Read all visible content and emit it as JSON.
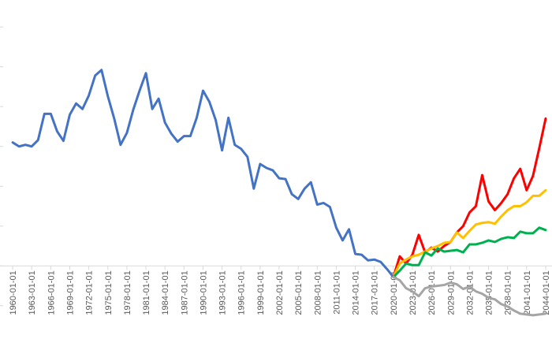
{
  "chart_data": {
    "type": "line",
    "title": "",
    "xlabel": "",
    "ylabel": "",
    "grid": false,
    "legend": "none",
    "x_axis_type": "date",
    "x_range": [
      "1958-01-01",
      "2045-01-01"
    ],
    "x_tick_labels": [
      "1960-01-01",
      "1963-01-01",
      "1966-01-01",
      "1969-01-01",
      "1972-01-01",
      "1975-01-01",
      "1978-01-01",
      "1981-01-01",
      "1984-01-01",
      "1987-01-01",
      "1990-01-01",
      "1993-01-01",
      "1996-01-01",
      "1999-01-01",
      "2002-01-01",
      "2005-01-01",
      "2008-01-01",
      "2011-01-01",
      "2014-01-01",
      "2017-01-01",
      "2020-01-01",
      "2023-01-01",
      "2026-01-01",
      "2029-01-01",
      "2032-01-01",
      "2035-01-01",
      "2038-01-01",
      "2041-01-01",
      "2044-01-01"
    ],
    "ylim": [
      -70,
      320
    ],
    "y_ticks": [
      -50,
      0,
      50,
      100,
      150,
      200,
      250,
      300
    ],
    "y_ticks_visible": false,
    "series": [
      {
        "color": "#4472C4",
        "x": [
          "1960-01-01",
          "1961-01-01",
          "1962-01-01",
          "1963-01-01",
          "1964-01-01",
          "1965-01-01",
          "1966-01-01",
          "1967-01-01",
          "1968-01-01",
          "1969-01-01",
          "1970-01-01",
          "1971-01-01",
          "1972-01-01",
          "1973-01-01",
          "1974-01-01",
          "1975-01-01",
          "1976-01-01",
          "1977-01-01",
          "1978-01-01",
          "1979-01-01",
          "1980-01-01",
          "1981-01-01",
          "1982-01-01",
          "1983-01-01",
          "1984-01-01",
          "1985-01-01",
          "1986-01-01",
          "1987-01-01",
          "1988-01-01",
          "1989-01-01",
          "1990-01-01",
          "1991-01-01",
          "1992-01-01",
          "1993-01-01",
          "1994-01-01",
          "1995-01-01",
          "1996-01-01",
          "1997-01-01",
          "1998-01-01",
          "1999-01-01",
          "2000-01-01",
          "2001-01-01",
          "2002-01-01",
          "2003-01-01",
          "2004-01-01",
          "2005-01-01",
          "2006-01-01",
          "2007-01-01",
          "2008-01-01",
          "2009-01-01",
          "2010-01-01",
          "2011-01-01",
          "2012-01-01",
          "2013-01-01",
          "2014-01-01",
          "2015-01-01",
          "2016-01-01",
          "2017-01-01",
          "2018-01-01",
          "2019-01-01",
          "2020-01-01"
        ],
        "values": [
          155,
          150,
          152,
          150,
          158,
          191,
          191,
          169,
          157,
          190,
          204,
          197,
          214,
          239,
          246,
          213,
          185,
          152,
          167,
          196,
          220,
          242,
          197,
          210,
          180,
          166,
          156,
          163,
          163,
          186,
          220,
          206,
          183,
          145,
          186,
          152,
          147,
          137,
          97,
          128,
          123,
          120,
          110,
          109,
          90,
          84,
          97,
          105,
          77,
          79,
          74,
          48,
          32,
          46,
          15,
          14,
          7,
          8,
          5,
          -4,
          -14
        ]
      },
      {
        "color": "#FF0000",
        "x": [
          "2020-01-01",
          "2021-01-01",
          "2022-01-01",
          "2023-01-01",
          "2024-01-01",
          "2025-01-01",
          "2026-01-01",
          "2027-01-01",
          "2028-01-01",
          "2029-01-01",
          "2030-01-01",
          "2031-01-01",
          "2032-01-01",
          "2033-01-01",
          "2034-01-01",
          "2035-01-01",
          "2036-01-01",
          "2037-01-01",
          "2038-01-01",
          "2039-01-01",
          "2040-01-01",
          "2041-01-01",
          "2042-01-01",
          "2043-01-01",
          "2044-01-01"
        ],
        "values": [
          -14,
          12,
          3,
          14,
          39,
          17,
          23,
          18,
          25,
          30,
          42,
          50,
          67,
          75,
          114,
          81,
          70,
          79,
          90,
          110,
          122,
          95,
          113,
          148,
          185
        ]
      },
      {
        "color": "#FFC000",
        "x": [
          "2020-01-01",
          "2021-01-01",
          "2022-01-01",
          "2023-01-01",
          "2024-01-01",
          "2025-01-01",
          "2026-01-01",
          "2027-01-01",
          "2028-01-01",
          "2029-01-01",
          "2030-01-01",
          "2031-01-01",
          "2032-01-01",
          "2033-01-01",
          "2034-01-01",
          "2035-01-01",
          "2036-01-01",
          "2037-01-01",
          "2038-01-01",
          "2039-01-01",
          "2040-01-01",
          "2041-01-01",
          "2042-01-01",
          "2043-01-01",
          "2044-01-01"
        ],
        "values": [
          -14,
          3,
          8,
          12,
          14,
          18,
          22,
          25,
          29,
          30,
          42,
          35,
          44,
          52,
          54,
          55,
          53,
          62,
          70,
          75,
          75,
          80,
          88,
          88,
          95
        ]
      },
      {
        "color": "#00B050",
        "x": [
          "2020-01-01",
          "2021-01-01",
          "2022-01-01",
          "2023-01-01",
          "2024-01-01",
          "2025-01-01",
          "2026-01-01",
          "2027-01-01",
          "2028-01-01",
          "2029-01-01",
          "2030-01-01",
          "2031-01-01",
          "2032-01-01",
          "2033-01-01",
          "2034-01-01",
          "2035-01-01",
          "2036-01-01",
          "2037-01-01",
          "2038-01-01",
          "2039-01-01",
          "2040-01-01",
          "2041-01-01",
          "2042-01-01",
          "2043-01-01",
          "2044-01-01"
        ],
        "values": [
          -14,
          -6,
          3,
          1,
          1,
          17,
          13,
          22,
          18,
          19,
          20,
          17,
          27,
          27,
          29,
          32,
          30,
          34,
          36,
          35,
          43,
          41,
          41,
          48,
          45
        ]
      },
      {
        "color": "#A5A5A5",
        "x": [
          "2020-01-01",
          "2021-01-01",
          "2022-01-01",
          "2023-01-01",
          "2024-01-01",
          "2025-01-01",
          "2026-01-01",
          "2027-01-01",
          "2028-01-01",
          "2029-01-01",
          "2030-01-01",
          "2031-01-01",
          "2032-01-01",
          "2033-01-01",
          "2034-01-01",
          "2035-01-01",
          "2036-01-01",
          "2037-01-01",
          "2038-01-01",
          "2039-01-01",
          "2040-01-01",
          "2041-01-01",
          "2042-01-01",
          "2043-01-01",
          "2044-01-01"
        ],
        "values": [
          -14,
          -18,
          -28,
          -32,
          -38,
          -28,
          -26,
          -25,
          -24,
          -21,
          -23,
          -29,
          -26,
          -32,
          -35,
          -40,
          -42,
          -48,
          -51,
          -56,
          -60,
          -61,
          -62,
          -61,
          -60
        ]
      }
    ]
  }
}
